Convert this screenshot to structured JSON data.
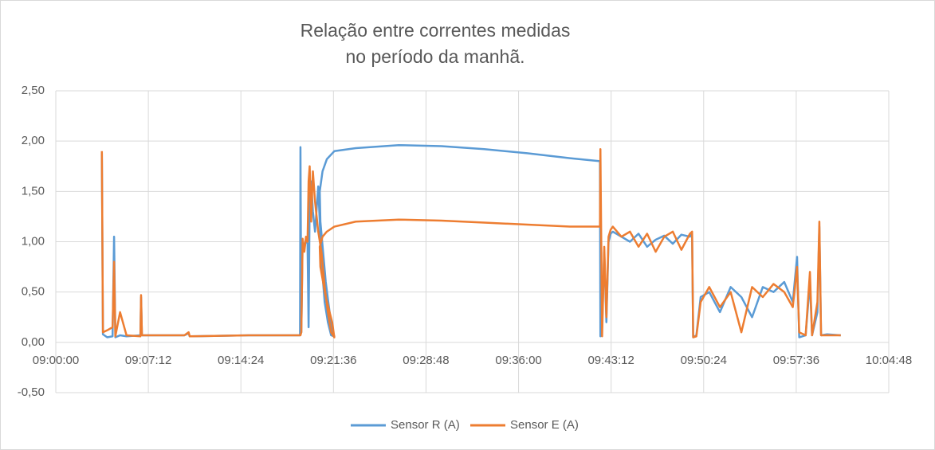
{
  "chart_data": {
    "type": "line",
    "title": [
      "Relação entre correntes medidas",
      "no período da manhã."
    ],
    "x": [
      "09:03:35",
      "09:03:40",
      "09:04:00",
      "09:04:25",
      "09:04:32",
      "09:04:38",
      "09:05:00",
      "09:05:30",
      "09:06:35",
      "09:06:38",
      "09:06:42",
      "09:10:00",
      "09:10:20",
      "09:10:25",
      "09:15:00",
      "09:19:00",
      "09:19:02",
      "09:19:06",
      "09:19:12",
      "09:19:20",
      "09:19:28",
      "09:19:35",
      "09:19:40",
      "09:19:45",
      "09:19:52",
      "09:20:00",
      "09:20:10",
      "09:20:25",
      "09:20:40",
      "09:20:55",
      "09:21:10",
      "09:21:25",
      "09:21:40",
      "09:21:30",
      "09:21:00",
      "09:20:35",
      "09:20:32",
      "09:20:45",
      "09:21:05",
      "09:21:40",
      "09:23:20",
      "09:26:40",
      "09:30:00",
      "09:33:20",
      "09:36:40",
      "09:40:00",
      "09:42:20",
      "09:42:22",
      "09:42:30",
      "09:42:40",
      "09:42:50",
      "09:43:00",
      "09:43:10",
      "09:43:20",
      "09:44:00",
      "09:44:40",
      "09:45:20",
      "09:46:00",
      "09:46:40",
      "09:47:20",
      "09:48:00",
      "09:48:40",
      "09:49:20",
      "09:49:30",
      "09:49:35",
      "09:49:50",
      "09:50:10",
      "09:50:50",
      "09:51:40",
      "09:52:30",
      "09:53:20",
      "09:54:10",
      "09:55:00",
      "09:55:50",
      "09:56:40",
      "09:57:20",
      "09:57:40",
      "09:57:50",
      "09:58:20",
      "09:58:40",
      "09:58:50",
      "09:59:15",
      "09:59:24",
      "09:59:32",
      "10:00:00",
      "10:01:04"
    ],
    "series": [
      {
        "name": "Sensor R (A)",
        "color": "#5b9bd5",
        "values": [
          1.88,
          0.08,
          0.05,
          0.06,
          1.05,
          0.05,
          0.07,
          0.06,
          0.07,
          0.45,
          0.07,
          0.07,
          0.09,
          0.06,
          0.07,
          0.07,
          1.94,
          0.1,
          1.0,
          0.95,
          1.02,
          0.98,
          0.15,
          1.45,
          1.6,
          1.3,
          1.1,
          1.55,
          0.8,
          0.4,
          0.2,
          0.07,
          0.06,
          0.1,
          0.6,
          1.2,
          1.5,
          1.7,
          1.82,
          1.9,
          1.93,
          1.96,
          1.95,
          1.92,
          1.88,
          1.83,
          1.8,
          0.06,
          0.15,
          0.9,
          0.2,
          1.0,
          1.08,
          1.1,
          1.05,
          1.0,
          1.08,
          0.95,
          1.02,
          1.06,
          0.98,
          1.07,
          1.05,
          1.08,
          0.05,
          0.07,
          0.45,
          0.5,
          0.3,
          0.55,
          0.45,
          0.25,
          0.55,
          0.5,
          0.6,
          0.4,
          0.85,
          0.05,
          0.07,
          0.6,
          0.07,
          0.3,
          1.15,
          0.07,
          0.08,
          0.07
        ]
      },
      {
        "name": "Sensor E (A)",
        "color": "#ed7d31",
        "values": [
          1.9,
          0.1,
          0.12,
          0.15,
          0.8,
          0.06,
          0.3,
          0.07,
          0.06,
          0.47,
          0.07,
          0.07,
          0.1,
          0.06,
          0.07,
          0.07,
          0.07,
          0.1,
          1.03,
          0.9,
          1.05,
          1.0,
          1.6,
          1.75,
          1.2,
          1.7,
          1.4,
          1.1,
          0.9,
          0.55,
          0.3,
          0.1,
          0.05,
          0.2,
          0.45,
          0.75,
          0.95,
          1.05,
          1.1,
          1.15,
          1.2,
          1.22,
          1.21,
          1.19,
          1.17,
          1.15,
          1.15,
          1.92,
          0.06,
          0.95,
          0.25,
          1.05,
          1.12,
          1.15,
          1.05,
          1.1,
          0.95,
          1.08,
          0.9,
          1.05,
          1.1,
          0.92,
          1.08,
          1.1,
          0.05,
          0.06,
          0.4,
          0.55,
          0.35,
          0.5,
          0.1,
          0.55,
          0.45,
          0.58,
          0.5,
          0.35,
          0.75,
          0.1,
          0.07,
          0.7,
          0.07,
          0.4,
          1.2,
          0.07,
          0.07,
          0.07
        ]
      }
    ],
    "xlim": [
      "09:00:00",
      "10:04:48"
    ],
    "xticks": [
      "09:00:00",
      "09:07:12",
      "09:14:24",
      "09:21:36",
      "09:28:48",
      "09:36:00",
      "09:43:12",
      "09:50:24",
      "09:57:36",
      "10:04:48"
    ],
    "ylim": [
      -0.5,
      2.5
    ],
    "yticks": [
      {
        "value": -0.5,
        "label": "-0,50"
      },
      {
        "value": 0,
        "label": "0,00"
      },
      {
        "value": 0.5,
        "label": "0,50"
      },
      {
        "value": 1,
        "label": "1,00"
      },
      {
        "value": 1.5,
        "label": "1,50"
      },
      {
        "value": 2,
        "label": "2,00"
      },
      {
        "value": 2.5,
        "label": "2,50"
      }
    ],
    "grid": true,
    "legend": "bottom"
  }
}
